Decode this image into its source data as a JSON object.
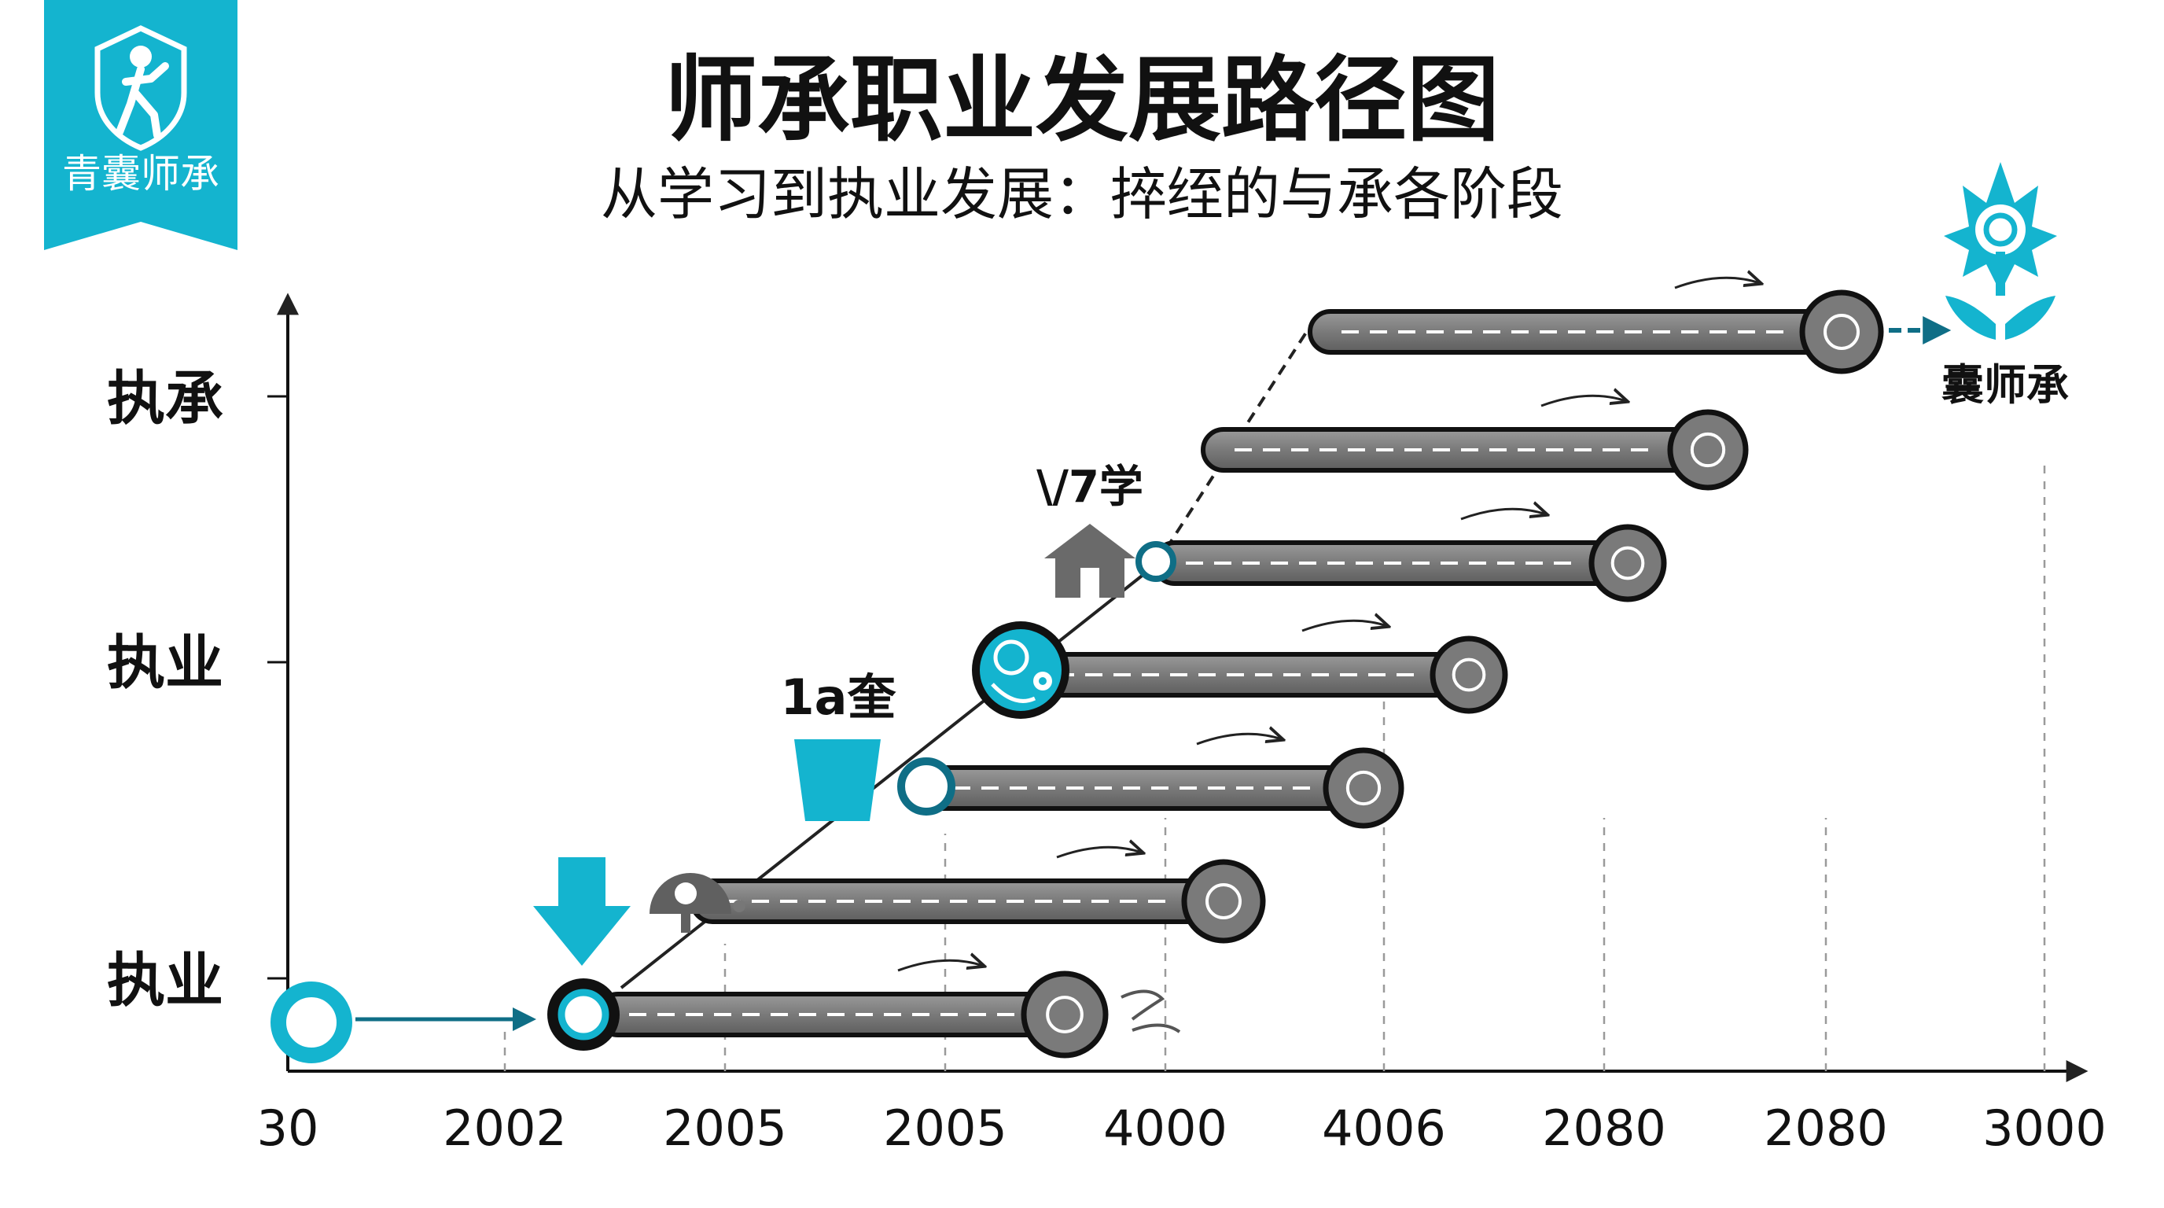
{
  "logo": {
    "text": "青囊师承",
    "icon": "person-running-shield-icon",
    "color": "#14b4cf"
  },
  "header": {
    "title": "师承职业发展路径图",
    "subtitle": "从学习到执业发展：捽绖的与承各阶段"
  },
  "y_axis_labels": [
    "执承",
    "执业",
    "执业"
  ],
  "x_axis_ticks": [
    "30",
    "2002",
    "2005",
    "2005",
    "4000",
    "4006",
    "2080",
    "2080",
    "3000"
  ],
  "annotations": {
    "step3": "1a奎",
    "step5": "\\/7学"
  },
  "endpoint": {
    "label": "囊师承",
    "icon": "lotus-flower-icon"
  },
  "colors": {
    "accent": "#14b4cf",
    "dark_teal": "#0f6e86",
    "road": "#7d7d7d",
    "road_edge": "#111111"
  },
  "stages_count": 7
}
